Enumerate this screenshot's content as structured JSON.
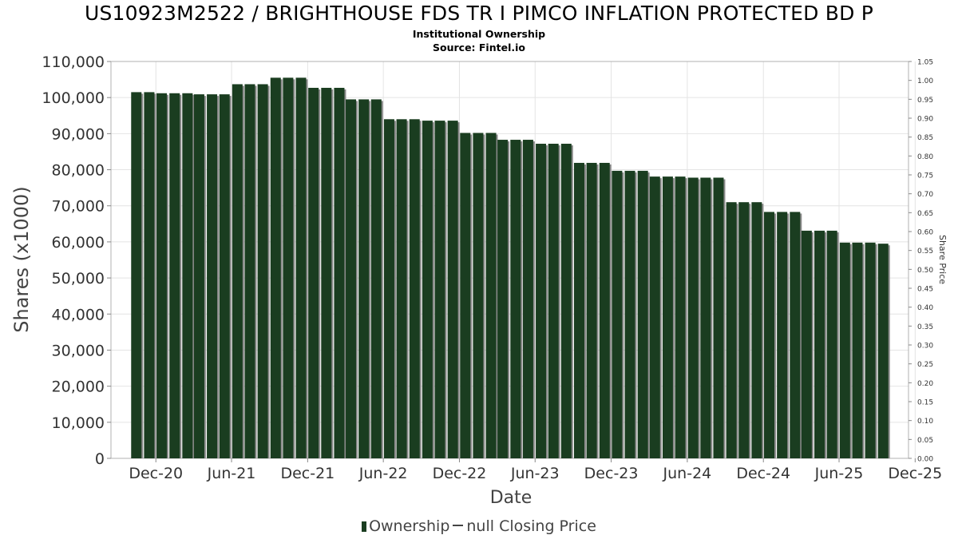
{
  "header": {
    "title": "US10923M2522 / BRIGHTHOUSE FDS TR I PIMCO INFLATION PROTECTED BD P",
    "subtitle1": "Institutional Ownership",
    "subtitle2": "Source: Fintel.io"
  },
  "legend": {
    "ownership_label": "Ownership",
    "price_label": "null Closing Price"
  },
  "colors": {
    "bar": "#1a3d20",
    "bar_shadow": "#8a8a8a",
    "grid": "#e4e4e4",
    "axis_text": "#333333"
  },
  "chart_data": {
    "type": "bar",
    "xlabel": "Date",
    "ylabel": "Shares (x1000)",
    "y2label": "Share Price",
    "ylim": [
      0,
      110000
    ],
    "y2lim": [
      0,
      1.05
    ],
    "grid": true,
    "legend_position": "bottom",
    "x_range": [
      "2020-08-15",
      "2025-11-15"
    ],
    "yticks": [
      "0",
      "10,000",
      "20,000",
      "30,000",
      "40,000",
      "50,000",
      "60,000",
      "70,000",
      "80,000",
      "90,000",
      "100,000",
      "110,000"
    ],
    "y2ticks": [
      "0.00",
      "0.05",
      "0.10",
      "0.15",
      "0.20",
      "0.25",
      "0.30",
      "0.35",
      "0.40",
      "0.45",
      "0.50",
      "0.55",
      "0.60",
      "0.65",
      "0.70",
      "0.75",
      "0.80",
      "0.85",
      "0.90",
      "0.95",
      "1.00",
      "1.05"
    ],
    "xticks": [
      {
        "label": "Dec-20",
        "date": "2020-12-01"
      },
      {
        "label": "Jun-21",
        "date": "2021-06-01"
      },
      {
        "label": "Dec-21",
        "date": "2021-12-01"
      },
      {
        "label": "Jun-22",
        "date": "2022-06-01"
      },
      {
        "label": "Dec-22",
        "date": "2022-12-01"
      },
      {
        "label": "Jun-23",
        "date": "2023-06-01"
      },
      {
        "label": "Dec-23",
        "date": "2023-12-01"
      },
      {
        "label": "Jun-24",
        "date": "2024-06-01"
      },
      {
        "label": "Dec-24",
        "date": "2024-12-01"
      },
      {
        "label": "Jun-25",
        "date": "2025-06-01"
      },
      {
        "label": "Dec-25",
        "date": "2025-12-01"
      }
    ],
    "series": [
      {
        "name": "Ownership",
        "x": [
          "2020-10",
          "2020-11",
          "2020-12",
          "2021-01",
          "2021-02",
          "2021-03",
          "2021-04",
          "2021-05",
          "2021-06",
          "2021-07",
          "2021-08",
          "2021-09",
          "2021-10",
          "2021-11",
          "2021-12",
          "2022-01",
          "2022-02",
          "2022-03",
          "2022-04",
          "2022-05",
          "2022-06",
          "2022-07",
          "2022-08",
          "2022-09",
          "2022-10",
          "2022-11",
          "2022-12",
          "2023-01",
          "2023-02",
          "2023-03",
          "2023-04",
          "2023-05",
          "2023-06",
          "2023-07",
          "2023-08",
          "2023-09",
          "2023-10",
          "2023-11",
          "2023-12",
          "2024-01",
          "2024-02",
          "2024-03",
          "2024-04",
          "2024-05",
          "2024-06",
          "2024-07",
          "2024-08",
          "2024-09",
          "2024-10",
          "2024-11",
          "2024-12",
          "2025-01",
          "2025-02",
          "2025-03",
          "2025-04",
          "2025-05",
          "2025-06",
          "2025-07",
          "2025-08",
          "2025-09"
        ],
        "values": [
          101500,
          101500,
          101200,
          101200,
          101200,
          100900,
          100900,
          100900,
          103700,
          103700,
          103700,
          105500,
          105500,
          105500,
          102700,
          102700,
          102700,
          99500,
          99500,
          99500,
          94000,
          94000,
          94000,
          93600,
          93600,
          93600,
          90200,
          90200,
          90200,
          88300,
          88300,
          88300,
          87200,
          87200,
          87200,
          81900,
          81900,
          81900,
          79700,
          79700,
          79700,
          78100,
          78100,
          78100,
          77800,
          77800,
          77800,
          71000,
          71000,
          71000,
          68300,
          68300,
          68300,
          63100,
          63100,
          63100,
          59800,
          59800,
          59800,
          59500
        ]
      }
    ]
  }
}
